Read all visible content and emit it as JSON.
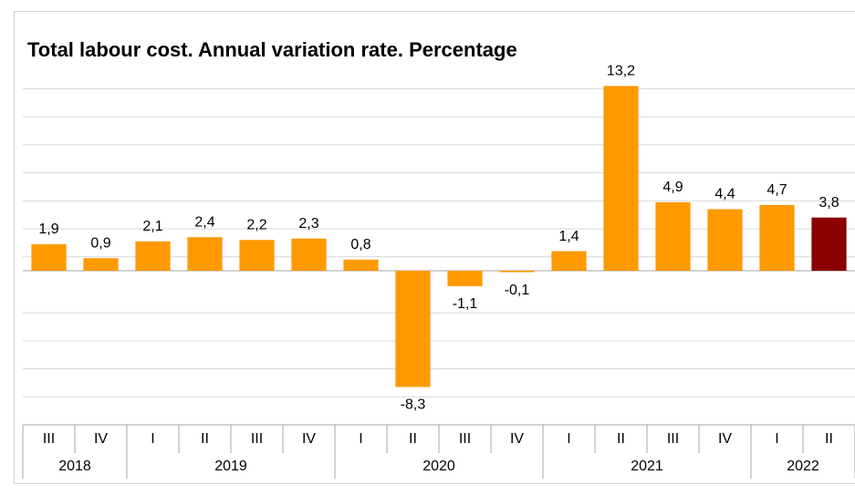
{
  "chart_data": {
    "type": "bar",
    "title": "Total labour cost. Annual  variation rate. Percentage",
    "categories": [
      "III",
      "IV",
      "I",
      "II",
      "III",
      "IV",
      "I",
      "II",
      "III",
      "IV",
      "I",
      "II",
      "III",
      "IV",
      "I",
      "II"
    ],
    "years": [
      "2018",
      "2018",
      "2019",
      "2019",
      "2019",
      "2019",
      "2020",
      "2020",
      "2020",
      "2020",
      "2021",
      "2021",
      "2021",
      "2021",
      "2022",
      "2022"
    ],
    "values": [
      1.9,
      0.9,
      2.1,
      2.4,
      2.2,
      2.3,
      0.8,
      -8.3,
      -1.1,
      -0.1,
      1.4,
      13.2,
      4.9,
      4.4,
      4.7,
      3.8
    ],
    "value_labels": [
      "1,9",
      "0,9",
      "2,1",
      "2,4",
      "2,2",
      "2,3",
      "0,8",
      "-8,3",
      "-1,1",
      "-0,1",
      "1,4",
      "13,2",
      "4,9",
      "4,4",
      "4,7",
      "3,8"
    ],
    "colors": [
      "#ff9900",
      "#ff9900",
      "#ff9900",
      "#ff9900",
      "#ff9900",
      "#ff9900",
      "#ff9900",
      "#ff9900",
      "#ff9900",
      "#ff9900",
      "#ff9900",
      "#ff9900",
      "#ff9900",
      "#ff9900",
      "#ff9900",
      "#8b0000"
    ],
    "ylim": [
      -11,
      14
    ],
    "yticks": [
      -9,
      -7,
      -5,
      -3,
      1,
      3,
      5,
      7,
      9,
      11,
      13
    ],
    "grid": true
  }
}
